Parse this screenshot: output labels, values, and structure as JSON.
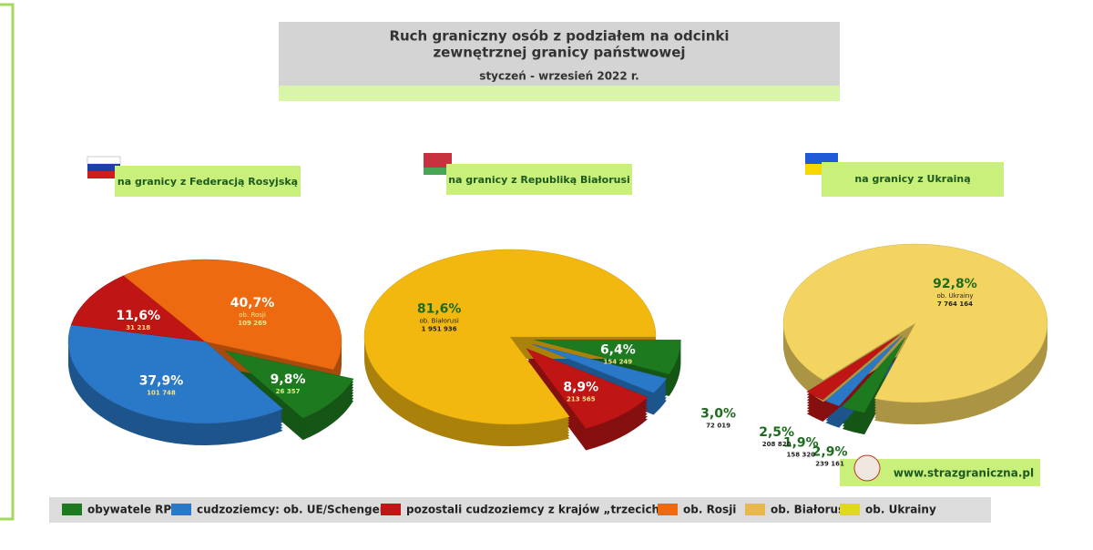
{
  "header": {
    "title_line1": "Ruch graniczny osób z podziałem na odcinki",
    "title_line2": "zewnętrznej granicy państwowej",
    "subtitle": "styczeń - wrzesień 2022 r."
  },
  "chart_data": [
    {
      "type": "pie",
      "title": "na granicy z Federacją Rosyjską",
      "start_angle": 20,
      "values": [
        9.8,
        37.9,
        11.6,
        40.7
      ],
      "value_labels": [
        "9,8%",
        "37,9%",
        "11,6%",
        "40,7%"
      ],
      "counts": [
        26357,
        101748,
        31218,
        109269
      ],
      "count_labels": [
        "26 357",
        "101 748",
        "31 218",
        "109 269"
      ],
      "notes": [
        null,
        null,
        null,
        "ob. Rosji"
      ],
      "colors": [
        "#1e7a1e",
        "#2a78c8",
        "#c01515",
        "#ee6a10"
      ]
    },
    {
      "type": "pie",
      "title": "na granicy z Republiką Białorusi",
      "start_angle": 0,
      "values": [
        6.4,
        3.0,
        8.9,
        81.6
      ],
      "value_labels": [
        "6,4%",
        "3,0%",
        "8,9%",
        "81,6%"
      ],
      "counts": [
        154249,
        72019,
        213565,
        1951936
      ],
      "count_labels": [
        "154 249",
        "72 019",
        "213 565",
        "1 951 936"
      ],
      "notes": [
        null,
        null,
        null,
        "ob. Białorusi"
      ],
      "colors": [
        "#1e7a1e",
        "#2a78c8",
        "#c01515",
        "#f2b810"
      ]
    },
    {
      "type": "pie",
      "title": "na granicy z Ukrainą",
      "start_angle": 108,
      "values": [
        2.9,
        1.9,
        2.5,
        92.8
      ],
      "value_labels": [
        "2,9%",
        "1,9%",
        "2,5%",
        "92,8%"
      ],
      "counts": [
        239161,
        158320,
        208820,
        7764164
      ],
      "count_labels": [
        "239 161",
        "158 320",
        "208 820",
        "7 764 164"
      ],
      "notes": [
        null,
        null,
        null,
        "ob. Ukrainy"
      ],
      "colors": [
        "#1e7a1e",
        "#2a78c8",
        "#c01515",
        "#f4d460"
      ]
    }
  ],
  "legend": [
    {
      "name": "obywatele RP",
      "color": "#1e7a1e"
    },
    {
      "name": "cudzoziemcy: ob. UE/Schengen",
      "color": "#2a78c8"
    },
    {
      "name": "pozostali cudzoziemcy z krajów „trzecich”",
      "color": "#c01515"
    },
    {
      "name": "ob. Rosji",
      "color": "#ee6a10"
    },
    {
      "name": "ob. Białorusi",
      "color": "#e8b850"
    },
    {
      "name": "ob. Ukrainy",
      "color": "#e0d820"
    }
  ],
  "website": "www.strazgraniczna.pl"
}
